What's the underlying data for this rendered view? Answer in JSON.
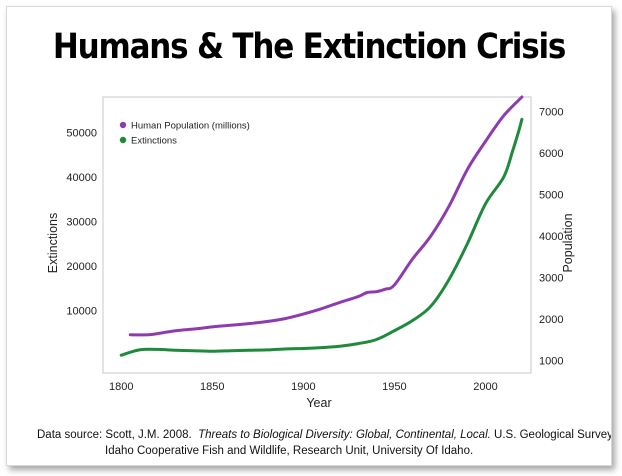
{
  "title": "Humans & The Extinction Crisis",
  "source": {
    "prefix": "Data source: Scott, J.M. 2008.",
    "italic": "Threats to Biological Diversity: Global, Continental, Local.",
    "suffix": "U.S. Geological Survey,",
    "line2": "Idaho Cooperative Fish and Wildlife, Research Unit, University Of Idaho."
  },
  "colors": {
    "population": "#8e3bb0",
    "extinctions": "#1f8a3c"
  },
  "chart_data": {
    "type": "line",
    "xlabel": "Year",
    "ylabel_left": "Extinctions",
    "ylabel_right": "Population",
    "xlim": [
      1790,
      2025
    ],
    "ylim_left": [
      -4000,
      58000
    ],
    "ylim_right": [
      700,
      7350
    ],
    "xticks": [
      1800,
      1850,
      1900,
      1950,
      2000
    ],
    "yticks_left": [
      10000,
      20000,
      30000,
      40000,
      50000
    ],
    "yticks_right": [
      1000,
      2000,
      3000,
      4000,
      5000,
      6000,
      7000
    ],
    "grid": false,
    "legend_position": "top-left",
    "series": [
      {
        "name": "Human Population (millions)",
        "axis": "right",
        "x": [
          1805,
          1815,
          1820,
          1830,
          1840,
          1850,
          1860,
          1870,
          1880,
          1890,
          1900,
          1910,
          1920,
          1930,
          1935,
          1940,
          1945,
          1950,
          1960,
          1970,
          1980,
          1990,
          2000,
          2010,
          2020
        ],
        "y": [
          1620,
          1620,
          1650,
          1720,
          1760,
          1810,
          1850,
          1890,
          1940,
          2010,
          2120,
          2250,
          2400,
          2540,
          2640,
          2660,
          2720,
          2820,
          3450,
          4000,
          4720,
          5600,
          6280,
          6900,
          7350
        ]
      },
      {
        "name": "Extinctions",
        "axis": "left",
        "x": [
          1800,
          1810,
          1820,
          1830,
          1840,
          1850,
          1860,
          1870,
          1880,
          1890,
          1900,
          1910,
          1920,
          1930,
          1940,
          1950,
          1960,
          1970,
          1980,
          1990,
          2000,
          2010,
          2015,
          2018,
          2020
        ],
        "y": [
          0,
          1200,
          1300,
          1100,
          1000,
          900,
          1000,
          1100,
          1200,
          1400,
          1500,
          1700,
          2000,
          2600,
          3500,
          5500,
          7800,
          11000,
          17000,
          25000,
          34000,
          40000,
          46000,
          50000,
          53000
        ]
      }
    ]
  }
}
